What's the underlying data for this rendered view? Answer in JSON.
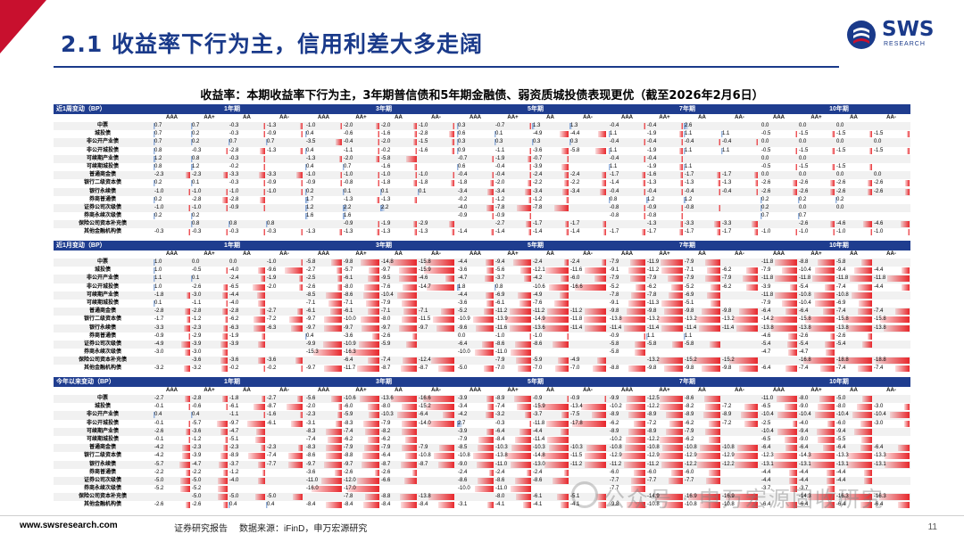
{
  "header": {
    "title": "2.1 收益率下行为主，信用利差大多走阔",
    "logo_text": "SWS",
    "logo_sub": "RESEARCH"
  },
  "table_title": "收益率：本期收益率下行为主，3年期普信债和5年期金融债、弱资质城投债表现更优（截至2026年2月6日）",
  "terms": [
    "1年期",
    "3年期",
    "5年期",
    "7年期",
    "10年期"
  ],
  "ratings": [
    "AAA",
    "AA+",
    "AA",
    "AA-"
  ],
  "row_names": [
    "中票",
    "城投债",
    "非公开产业债",
    "非公开城投债",
    "可续期产业债",
    "可续期城投债",
    "普通商金债",
    "银行二级资本债",
    "银行永续债",
    "券商普通债",
    "证券公司次级债",
    "券商永续次级债",
    "保险公司资本补充债",
    "其他金融机构债"
  ],
  "blocks": [
    {
      "label": "近1周变动（BP）",
      "rows": [
        [
          "0.7",
          "0.7",
          "-0.3",
          "-1.3",
          "-1.0",
          "-2.0",
          "-2.0",
          "-1.0",
          "0.3",
          "-0.7",
          "1.3",
          "1.3",
          "-0.4",
          "-0.4",
          "2.6",
          "",
          "0.0",
          "0.0",
          "0.0",
          ""
        ],
        [
          "0.7",
          "0.2",
          "-0.3",
          "-0.9",
          "0.4",
          "-0.6",
          "-1.6",
          "-2.8",
          "0.6",
          "0.1",
          "-4.9",
          "-4.4",
          "1.1",
          "-1.9",
          "1.1",
          "1.1",
          "-0.5",
          "-1.5",
          "-1.5",
          "-1.5"
        ],
        [
          "0.7",
          "0.2",
          "0.7",
          "0.7",
          "-3.5",
          "-0.4",
          "-2.0",
          "-1.5",
          "0.3",
          "0.3",
          "0.3",
          "0.3",
          "-0.4",
          "-0.4",
          "-0.4",
          "-0.4",
          "0.0",
          "0.0",
          "0.0",
          "0.0"
        ],
        [
          "0.8",
          "-0.3",
          "-2.8",
          "-1.3",
          "0.4",
          "-1.1",
          "-0.2",
          "-1.6",
          "0.9",
          "-1.1",
          "-3.6",
          "-5.8",
          "1.1",
          "-1.9",
          "1.1",
          "1.1",
          "-0.5",
          "-1.5",
          "-1.5",
          "-1.5"
        ],
        [
          "1.2",
          "0.8",
          "-0.3",
          "",
          "-1.3",
          "-2.0",
          "-5.8",
          "",
          "-0.7",
          "-1.9",
          "-0.7",
          "",
          "-0.4",
          "-0.4",
          "",
          "",
          "0.0",
          "0.0",
          "",
          ""
        ],
        [
          "0.8",
          "1.2",
          "-0.2",
          "",
          "0.4",
          "0.7",
          "-1.6",
          "",
          "0.6",
          "-0.4",
          "-3.9",
          "",
          "1.1",
          "-1.9",
          "1.1",
          "",
          "-0.5",
          "-1.5",
          "-1.5",
          ""
        ],
        [
          "-2.3",
          "-2.3",
          "-3.3",
          "-3.3",
          "-1.0",
          "-1.0",
          "-1.0",
          "-1.0",
          "-0.4",
          "-0.4",
          "-2.4",
          "-2.4",
          "-1.7",
          "-1.6",
          "-1.7",
          "-1.7",
          "0.0",
          "0.0",
          "0.0",
          "0.0"
        ],
        [
          "0.2",
          "0.1",
          "-0.3",
          "-0.9",
          "-0.9",
          "-0.8",
          "-1.8",
          "-1.8",
          "-1.8",
          "-2.0",
          "-2.2",
          "-2.2",
          "-1.4",
          "-1.3",
          "-1.3",
          "-1.3",
          "-2.6",
          "-2.6",
          "-2.6",
          "-2.6"
        ],
        [
          "-1.0",
          "-1.0",
          "-1.0",
          "-1.0",
          "0.2",
          "0.1",
          "0.1",
          "0.1",
          "-3.4",
          "-3.4",
          "-3.4",
          "-3.4",
          "-0.4",
          "-0.4",
          "-0.4",
          "-0.4",
          "-2.6",
          "-2.6",
          "-2.6",
          "-2.6"
        ],
        [
          "0.2",
          "-2.8",
          "-2.8",
          "",
          "1.7",
          "-1.3",
          "-1.3",
          "",
          "-0.2",
          "-1.2",
          "-1.2",
          "",
          "0.8",
          "1.2",
          "1.2",
          "",
          "0.2",
          "0.2",
          "0.2",
          ""
        ],
        [
          "-1.0",
          "-1.0",
          "-0.9",
          "",
          "1.2",
          "2.2",
          "2.2",
          "",
          "-4.0",
          "-7.8",
          "-7.8",
          "",
          "-0.8",
          "-0.9",
          "-0.8",
          "",
          "0.2",
          "0.0",
          "0.0",
          ""
        ],
        [
          "0.2",
          "0.2",
          "",
          "",
          "1.6",
          "1.6",
          "",
          "",
          "-0.9",
          "-0.9",
          "",
          "",
          "-0.8",
          "-0.8",
          "",
          "",
          "0.7",
          "0.7",
          "",
          ""
        ],
        [
          "",
          "0.8",
          "0.8",
          "0.8",
          "",
          "-0.9",
          "-1.9",
          "-2.9",
          "",
          "-2.7",
          "-1.7",
          "-1.7",
          "",
          "-1.3",
          "-3.3",
          "-3.3",
          "",
          "-2.6",
          "-4.6",
          "-4.6"
        ],
        [
          "-0.3",
          "-0.3",
          "-0.3",
          "-0.3",
          "-1.3",
          "-1.3",
          "-1.3",
          "-1.3",
          "-1.4",
          "-1.4",
          "-1.4",
          "-1.4",
          "-1.7",
          "-1.7",
          "-1.7",
          "-1.7",
          "-1.0",
          "-1.0",
          "-1.0",
          "-1.0"
        ]
      ]
    },
    {
      "label": "近1月变动（BP）",
      "rows": [
        [
          "1.0",
          "0.0",
          "0.0",
          "-1.0",
          "-5.8",
          "-9.8",
          "-14.8",
          "-15.8",
          "-4.4",
          "-9.4",
          "-2.4",
          "-2.4",
          "-7.9",
          "-11.9",
          "-7.9",
          "",
          "-11.8",
          "-8.8",
          "-5.8",
          ""
        ],
        [
          "1.0",
          "-0.5",
          "-4.0",
          "-9.6",
          "-2.7",
          "-5.7",
          "-9.7",
          "-15.9",
          "-3.6",
          "-5.6",
          "-12.1",
          "-11.6",
          "-9.1",
          "-11.2",
          "-7.1",
          "-6.2",
          "-7.9",
          "-10.4",
          "-9.4",
          "-4.4"
        ],
        [
          "1.1",
          "0.1",
          "-2.4",
          "-1.9",
          "-2.5",
          "-6.1",
          "-9.5",
          "-4.6",
          "-4.7",
          "-3.7",
          "-4.2",
          "-6.0",
          "-7.9",
          "-7.9",
          "-7.9",
          "-7.9",
          "-11.8",
          "-11.8",
          "-11.8",
          "-11.8"
        ],
        [
          "1.0",
          "-2.6",
          "-6.5",
          "-2.0",
          "-2.6",
          "-8.0",
          "-7.6",
          "-14.7",
          "1.8",
          "0.8",
          "-10.6",
          "-16.6",
          "-5.2",
          "-6.2",
          "-5.2",
          "-6.2",
          "-3.9",
          "-5.4",
          "-7.4",
          "-4.4"
        ],
        [
          "-1.8",
          "-3.0",
          "-4.4",
          "",
          "-8.5",
          "-8.6",
          "-10.4",
          "",
          "-4.4",
          "-6.9",
          "-4.9",
          "",
          "-7.8",
          "-7.8",
          "-6.9",
          "",
          "-11.8",
          "-10.8",
          "-10.8",
          ""
        ],
        [
          "0.1",
          "-1.1",
          "-4.0",
          "",
          "-7.1",
          "-7.1",
          "-7.9",
          "",
          "-3.6",
          "-6.1",
          "-7.6",
          "",
          "-9.1",
          "-11.3",
          "-5.1",
          "",
          "-7.9",
          "-10.4",
          "-6.9",
          ""
        ],
        [
          "-2.8",
          "-2.8",
          "-2.8",
          "-2.7",
          "-6.1",
          "-6.1",
          "-7.1",
          "-7.1",
          "-5.2",
          "-11.2",
          "-11.2",
          "-11.2",
          "-9.8",
          "-9.8",
          "-9.8",
          "-9.8",
          "-6.4",
          "-6.4",
          "-7.4",
          "-7.4"
        ],
        [
          "-1.7",
          "-1.2",
          "-6.2",
          "-7.2",
          "-9.7",
          "-10.0",
          "-8.0",
          "-11.5",
          "-10.9",
          "-13.9",
          "-14.9",
          "-11.8",
          "-13.8",
          "-13.2",
          "-13.2",
          "-13.2",
          "-14.2",
          "-15.8",
          "-15.8",
          "-15.8"
        ],
        [
          "-3.3",
          "-2.3",
          "-6.3",
          "-6.3",
          "-9.7",
          "-9.7",
          "-9.7",
          "-9.7",
          "-9.6",
          "-11.6",
          "-13.6",
          "-11.4",
          "-11.4",
          "-11.4",
          "-11.4",
          "-11.4",
          "-13.8",
          "-13.8",
          "-13.8",
          "-13.8"
        ],
        [
          "-0.9",
          "-2.9",
          "-1.9",
          "",
          "0.4",
          "-3.6",
          "-2.6",
          "",
          "0.0",
          "-1.0",
          "-1.0",
          "",
          "-0.9",
          "1.1",
          "1.1",
          "",
          "-4.6",
          "-2.6",
          "-2.6",
          ""
        ],
        [
          "-4.9",
          "-3.9",
          "-3.9",
          "",
          "-9.9",
          "-10.9",
          "-5.9",
          "",
          "-6.4",
          "-8.6",
          "-8.6",
          "",
          "-5.8",
          "-5.8",
          "-5.8",
          "",
          "-5.4",
          "-5.4",
          "-5.4",
          ""
        ],
        [
          "-3.0",
          "-3.0",
          "",
          "",
          "-15.3",
          "-16.3",
          "",
          "",
          "-10.0",
          "-11.0",
          "",
          "",
          "-5.8",
          "",
          "",
          "",
          "-4.7",
          "-4.7",
          "",
          ""
        ],
        [
          "",
          "-3.6",
          "-3.6",
          "-3.6",
          "",
          "-6.4",
          "-7.4",
          "-12.4",
          "",
          "-7.9",
          "-5.9",
          "-4.9",
          "",
          "-13.2",
          "-15.2",
          "-15.2",
          "",
          "-16.8",
          "-18.8",
          "-18.8"
        ],
        [
          "-3.2",
          "-3.2",
          "-0.2",
          "-0.2",
          "-9.7",
          "-11.7",
          "-8.7",
          "-8.7",
          "-5.0",
          "-7.0",
          "-7.0",
          "-7.0",
          "-8.8",
          "-9.8",
          "-9.8",
          "-9.8",
          "-6.4",
          "-7.4",
          "-7.4",
          "-7.4"
        ]
      ]
    },
    {
      "label": "今年以来变动（BP）",
      "rows": [
        [
          "-2.7",
          "-2.8",
          "-1.8",
          "-2.7",
          "-5.6",
          "-10.6",
          "-13.6",
          "-16.6",
          "-3.9",
          "-8.9",
          "-0.9",
          "-0.9",
          "-9.9",
          "-12.5",
          "-8.6",
          "",
          "-11.0",
          "-8.0",
          "-5.0",
          ""
        ],
        [
          "-0.1",
          "-0.6",
          "-6.1",
          "-8.7",
          "-2.0",
          "-6.0",
          "-8.0",
          "-15.2",
          "-3.4",
          "-7.4",
          "-15.9",
          "-13.4",
          "-10.2",
          "-12.2",
          "-8.2",
          "-7.2",
          "-6.5",
          "-9.0",
          "-8.0",
          "-3.0"
        ],
        [
          "0.4",
          "0.4",
          "-1.1",
          "-1.6",
          "-2.3",
          "-5.9",
          "-10.3",
          "-6.4",
          "-4.2",
          "-3.2",
          "-3.7",
          "-7.5",
          "-8.9",
          "-8.9",
          "-8.9",
          "-8.9",
          "-10.4",
          "-10.4",
          "-10.4",
          "-10.4"
        ],
        [
          "-0.1",
          "-5.7",
          "-9.7",
          "-6.1",
          "-3.1",
          "-8.3",
          "-7.9",
          "-14.0",
          "2.7",
          "-0.3",
          "-11.8",
          "-17.8",
          "-6.2",
          "-7.2",
          "-6.2",
          "-7.2",
          "-2.5",
          "-4.0",
          "-6.0",
          "-3.0"
        ],
        [
          "-2.6",
          "-3.6",
          "-4.7",
          "",
          "-8.3",
          "-7.4",
          "-8.2",
          "",
          "-3.9",
          "-6.4",
          "-4.4",
          "",
          "-8.9",
          "-8.9",
          "-7.9",
          "",
          "-10.4",
          "-9.4",
          "-9.4",
          ""
        ],
        [
          "-0.1",
          "-1.2",
          "-5.1",
          "",
          "-7.4",
          "-6.2",
          "-6.2",
          "",
          "-7.9",
          "-8.4",
          "-11.4",
          "",
          "-10.2",
          "-12.2",
          "-6.2",
          "",
          "-6.5",
          "-9.0",
          "-5.5",
          ""
        ],
        [
          "-4.2",
          "-2.3",
          "-2.3",
          "-2.3",
          "-8.3",
          "-7.9",
          "-7.9",
          "-7.9",
          "-8.5",
          "-10.3",
          "-10.3",
          "-10.3",
          "-10.8",
          "-10.8",
          "-10.8",
          "-10.8",
          "-6.4",
          "-6.4",
          "-6.4",
          "-6.4"
        ],
        [
          "-4.2",
          "-3.9",
          "-8.9",
          "-7.4",
          "-8.6",
          "-8.8",
          "-6.4",
          "-10.8",
          "-10.8",
          "-13.8",
          "-14.8",
          "-11.5",
          "-12.9",
          "-12.9",
          "-12.9",
          "-12.9",
          "-12.3",
          "-14.3",
          "-13.3",
          "-13.3"
        ],
        [
          "-5.7",
          "-4.7",
          "-3.7",
          "-7.7",
          "-9.7",
          "-9.7",
          "-8.7",
          "-8.7",
          "-9.0",
          "-11.0",
          "-13.0",
          "-11.2",
          "-11.2",
          "-11.2",
          "-12.2",
          "-12.2",
          "-13.1",
          "-13.1",
          "-13.1",
          "-13.1"
        ],
        [
          "-2.2",
          "-2.2",
          "-1.2",
          "",
          "-3.6",
          "-2.6",
          "-2.6",
          "",
          "-2.4",
          "-2.4",
          "-2.4",
          "",
          "-6.0",
          "-6.0",
          "-6.0",
          "",
          "-4.4",
          "-4.4",
          "-4.4",
          ""
        ],
        [
          "-5.0",
          "-5.0",
          "-4.0",
          "",
          "-11.0",
          "-12.0",
          "-6.6",
          "",
          "-8.6",
          "-8.6",
          "-8.6",
          "",
          "-7.7",
          "-7.7",
          "-7.7",
          "",
          "-4.4",
          "-4.4",
          "-4.4",
          ""
        ],
        [
          "-5.2",
          "-5.2",
          "",
          "",
          "-16.0",
          "-17.0",
          "",
          "",
          "-10.0",
          "-11.0",
          "",
          "",
          "-7.7",
          "",
          "",
          "",
          "-3.7",
          "-3.7",
          "",
          ""
        ],
        [
          "",
          "-5.0",
          "-5.0",
          "-5.0",
          "",
          "-7.8",
          "-8.8",
          "-13.8",
          "",
          "-8.0",
          "-6.1",
          "-5.1",
          "",
          "-14.9",
          "-16.9",
          "-16.9",
          "",
          "-14.3",
          "-16.3",
          "-16.3"
        ],
        [
          "-2.6",
          "-2.6",
          "0.4",
          "0.4",
          "-8.4",
          "-8.4",
          "-8.4",
          "-8.4",
          "-3.1",
          "-4.1",
          "-4.1",
          "-4.1",
          "-9.8",
          "-10.8",
          "-10.8",
          "-10.8",
          "-6.4",
          "-6.4",
          "-6.4",
          "-6.4"
        ]
      ]
    }
  ],
  "colors": {
    "brand": "#1a3a8a",
    "header_band": "#1f3d8f",
    "negative_bar": "#e8262b",
    "positive_bar": "#7a9fd6"
  },
  "watermark": "公众号 · 申万宏源固收研究",
  "footer": {
    "site": "www.swsresearch.com",
    "report": "证券研究报告",
    "source": "数据来源：iFinD，申万宏源研究",
    "page": "11"
  }
}
